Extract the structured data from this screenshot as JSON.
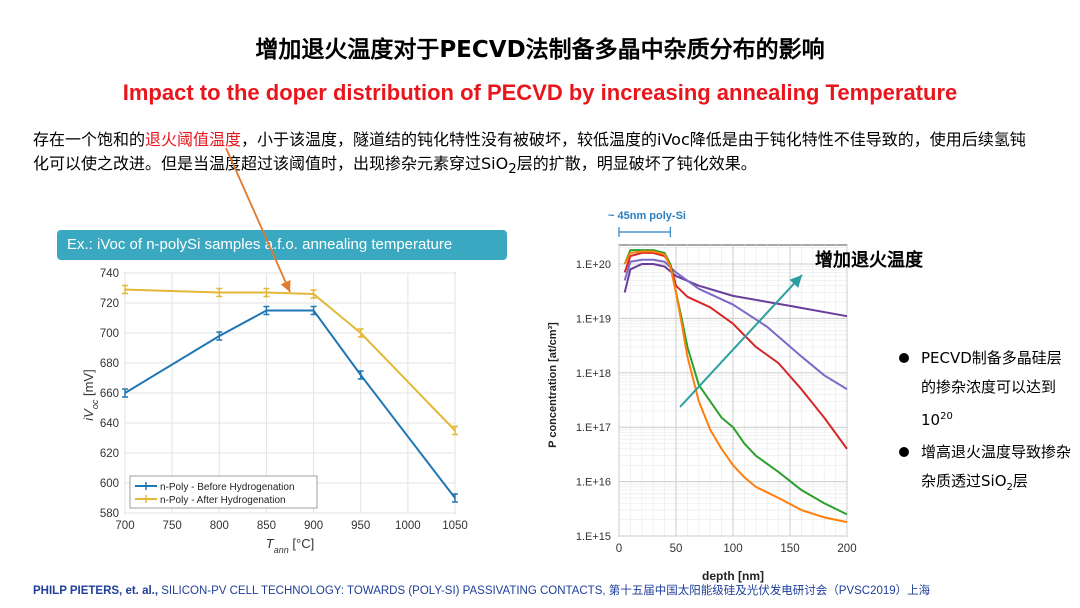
{
  "title_cn": "增加退火温度对于PECVD法制备多晶中杂质分布的影响",
  "title_en": "Impact to the doper distribution of PECVD by increasing annealing Temperature",
  "paragraph": {
    "part1": "存在一个饱和的",
    "highlight": "退火阈值温度",
    "part2": "，小于该温度，隧道结的钝化特性没有被破坏，较低温度的iVoc降低是由于钝化特性不佳导致的，使用后续氢钝化可以使之改进。但是当温度超过该阈值时，出现掺杂元素穿过SiO",
    "sub": "2",
    "part3": "层的扩散，明显破坏了钝化效果。"
  },
  "banner": "Ex.: iVoc of n-polySi samples a.f.o. annealing temperature",
  "colors": {
    "red": "#e8161c",
    "blue": "#1f77b4",
    "orange": "#e3b737",
    "teal": "#2a9fa0",
    "banner": "#3aa8c1",
    "arrow": "#e07a2e"
  },
  "chart_data": [
    {
      "type": "line",
      "x": [
        700,
        800,
        850,
        900,
        950,
        1050
      ],
      "xticks": [
        "700",
        "750",
        "800",
        "850",
        "900",
        "950",
        "1000",
        "1050"
      ],
      "yticks": [
        "580",
        "600",
        "620",
        "640",
        "660",
        "680",
        "700",
        "720",
        "740"
      ],
      "xlim": [
        700,
        1050
      ],
      "ylim": [
        580,
        740
      ],
      "xlabel_main": "T",
      "xlabel_sub": "ann",
      "xlabel_unit": " [°C]",
      "ylabel_main": "iV",
      "ylabel_sub": "oc",
      "ylabel_unit": " [mV]",
      "grid": true,
      "legend_position": "bottom-left",
      "series": [
        {
          "name": "n-Poly - Before Hydrogenation",
          "values": [
            660,
            698,
            715,
            715,
            672,
            590
          ]
        },
        {
          "name": "n-Poly - After Hydrogenation",
          "values": [
            729,
            727,
            727,
            726,
            700,
            635
          ]
        }
      ]
    },
    {
      "type": "line",
      "title": "~ 45nm poly-Si",
      "xlabel": "depth [nm]",
      "ylabel": "P concentration [at/cm³]",
      "y_scale": "log",
      "xlim": [
        0,
        200
      ],
      "ylim": [
        1000000000000000.0,
        2e+20
      ],
      "xticks": [
        "0",
        "50",
        "100",
        "150",
        "200"
      ],
      "yticks": [
        "1.E+15",
        "1.E+16",
        "1.E+17",
        "1.E+18",
        "1.E+19",
        "1.E+20"
      ],
      "annotation": "增加退火温度",
      "series": [
        {
          "color": "#6a3d9a",
          "x": [
            5,
            10,
            20,
            30,
            40,
            50,
            70,
            100,
            150,
            200
          ],
          "values": [
            3e+19,
            8e+19,
            1e+20,
            1e+20,
            9e+19,
            6e+19,
            4e+19,
            2.6e+19,
            1.7e+19,
            1.1e+19
          ]
        },
        {
          "color": "#7b68c8",
          "x": [
            5,
            10,
            20,
            30,
            40,
            50,
            70,
            100,
            130,
            160,
            180,
            200
          ],
          "values": [
            5e+19,
            1.1e+20,
            1.2e+20,
            1.2e+20,
            1.1e+20,
            7e+19,
            3.5e+19,
            1.8e+19,
            7e+18,
            2e+18,
            9e+17,
            5e+17
          ]
        },
        {
          "color": "#d62728",
          "x": [
            5,
            10,
            20,
            30,
            40,
            45,
            50,
            60,
            80,
            100,
            120,
            140,
            160,
            180,
            200
          ],
          "values": [
            7e+19,
            1.4e+20,
            1.6e+20,
            1.6e+20,
            1.4e+20,
            1e+20,
            4e+19,
            2.5e+19,
            1.6e+19,
            8e+18,
            3e+18,
            1.5e+18,
            5e+17,
            1.5e+17,
            4e+16
          ]
        },
        {
          "color": "#2ca02c",
          "x": [
            5,
            10,
            20,
            30,
            40,
            45,
            50,
            55,
            60,
            70,
            80,
            90,
            100,
            110,
            120,
            140,
            160,
            180,
            200
          ],
          "values": [
            1e+20,
            1.8e+20,
            1.8e+20,
            1.8e+20,
            1.6e+20,
            1e+20,
            3e+19,
            1e+19,
            3e+18,
            6e+17,
            3e+17,
            1.5e+17,
            1e+17,
            5e+16,
            3e+16,
            1.5e+16,
            7000000000000000.0,
            4000000000000000.0,
            2500000000000000.0
          ]
        },
        {
          "color": "#ff7f0e",
          "x": [
            5,
            10,
            20,
            30,
            40,
            45,
            50,
            55,
            60,
            70,
            80,
            90,
            100,
            110,
            120,
            140,
            160,
            180,
            200
          ],
          "values": [
            1e+20,
            1.6e+20,
            1.7e+20,
            1.7e+20,
            1.5e+20,
            9e+19,
            3e+19,
            8e+18,
            2e+18,
            3e+17,
            9e+16,
            4e+16,
            2e+16,
            1.2e+16,
            8000000000000000.0,
            5000000000000000.0,
            3000000000000000.0,
            2200000000000000.0,
            1800000000000000.0
          ]
        }
      ]
    }
  ],
  "bullets": [
    {
      "text": "PECVD制备多晶硅层的掺杂浓度可以达到10",
      "sup": "20",
      "tail": ""
    },
    {
      "text": "增高退火温度导致掺杂杂质透过SiO",
      "sub": "2",
      "tail": "层"
    }
  ],
  "footer": {
    "author": "PHILP PIETERS, et. al.,",
    "rest": " SILICON-PV CELL TECHNOLOGY: TOWARDS (POLY-SI) PASSIVATING CONTACTS, 第十五届中国太阳能级硅及光伏发电研讨会（PVSC2019）上海"
  }
}
